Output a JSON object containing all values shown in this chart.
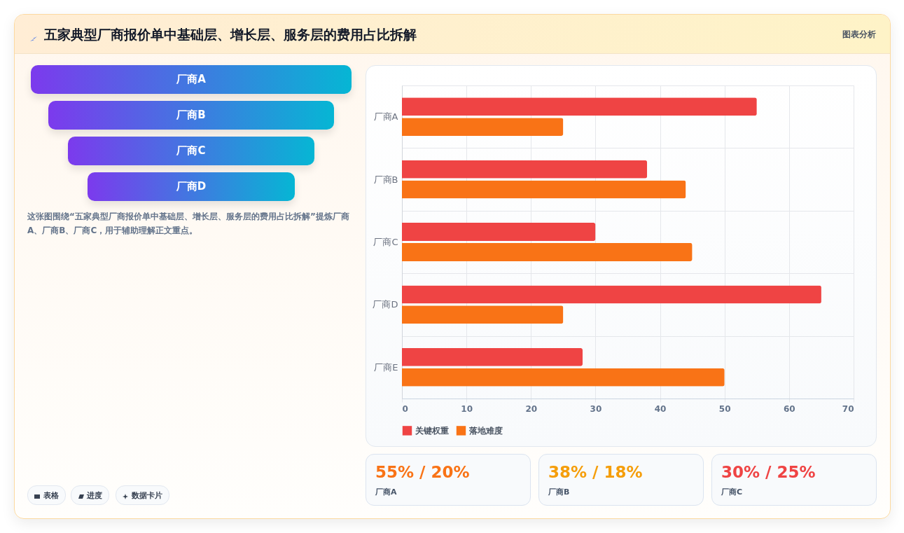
{
  "chart_data": [
    {
      "type": "other",
      "title": "五家典型厂商报价单中基础层、增长层、服务层的费用占比拆解",
      "categories": [
        "厂商A",
        "厂商B",
        "厂商C",
        "厂商D"
      ],
      "annotations": [
        "这张图围绕“五家典型厂商报价单中基础层、增长层、服务层的费用占比拆解”提炼厂商A、厂商B、厂商C，用于辅助理解正文重点。",
        "图表分析",
        "表格",
        "进度",
        "数据卡片"
      ]
    },
    {
      "type": "bar",
      "orientation": "horizontal",
      "categories": [
        "厂商A",
        "厂商B",
        "厂商C",
        "厂商D",
        "厂商E"
      ],
      "series": [
        {
          "name": "关键权重",
          "color": "#ef4444",
          "values": [
            55,
            38,
            30,
            65,
            28
          ]
        },
        {
          "name": "落地难度",
          "color": "#f97316",
          "values": [
            25,
            44,
            45,
            25,
            50
          ]
        }
      ],
      "xlim": [
        0,
        70
      ],
      "xticks": [
        0,
        10,
        20,
        30,
        40,
        50,
        60,
        70
      ],
      "grid": true,
      "legend": "bottom"
    },
    {
      "type": "other",
      "categories": [
        "厂商A",
        "厂商B",
        "厂商C"
      ],
      "value_labels": [
        "55% / 20%",
        "38% / 18%",
        "30% / 25%"
      ]
    }
  ]
}
